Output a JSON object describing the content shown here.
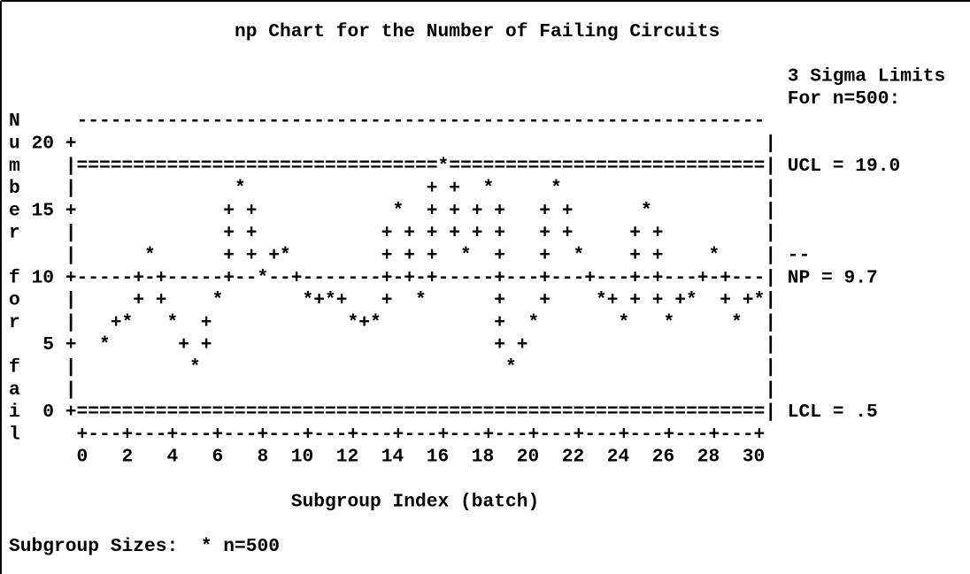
{
  "chart_data": {
    "type": "line",
    "title": "np Chart for the Number of Failing Circuits",
    "limits_heading": "3 Sigma Limits",
    "limits_subheading": "For n=500:",
    "y_label": "Number for fail",
    "x_label": "Subgroup Index (batch)",
    "footnote": "Subgroup Sizes:  * n=500",
    "marker": "*",
    "connector": "+",
    "zone_marker": "--",
    "ucl": {
      "value": 19.0,
      "label": "UCL = 19.0"
    },
    "center": {
      "value": 9.7,
      "label": "NP = 9.7"
    },
    "lcl": {
      "value": 0.5,
      "label": "LCL = .5"
    },
    "x": [
      1,
      2,
      3,
      4,
      5,
      6,
      7,
      8,
      9,
      10,
      11,
      12,
      13,
      14,
      15,
      16,
      17,
      18,
      19,
      20,
      21,
      22,
      23,
      24,
      25,
      26,
      27,
      28,
      29,
      30
    ],
    "values": [
      5,
      7,
      12,
      7,
      3,
      8,
      17,
      10,
      12,
      8,
      8,
      7,
      7,
      15,
      8,
      18,
      12,
      17,
      3,
      7,
      17,
      12,
      8,
      7,
      15,
      7,
      8,
      12,
      7,
      8
    ],
    "xlim": [
      0,
      30
    ],
    "xticks": [
      0,
      2,
      4,
      6,
      8,
      10,
      12,
      14,
      16,
      18,
      20,
      22,
      24,
      26,
      28,
      30
    ],
    "ylim": [
      0,
      20
    ],
    "yticks": [
      0,
      5,
      10,
      15,
      20
    ]
  }
}
